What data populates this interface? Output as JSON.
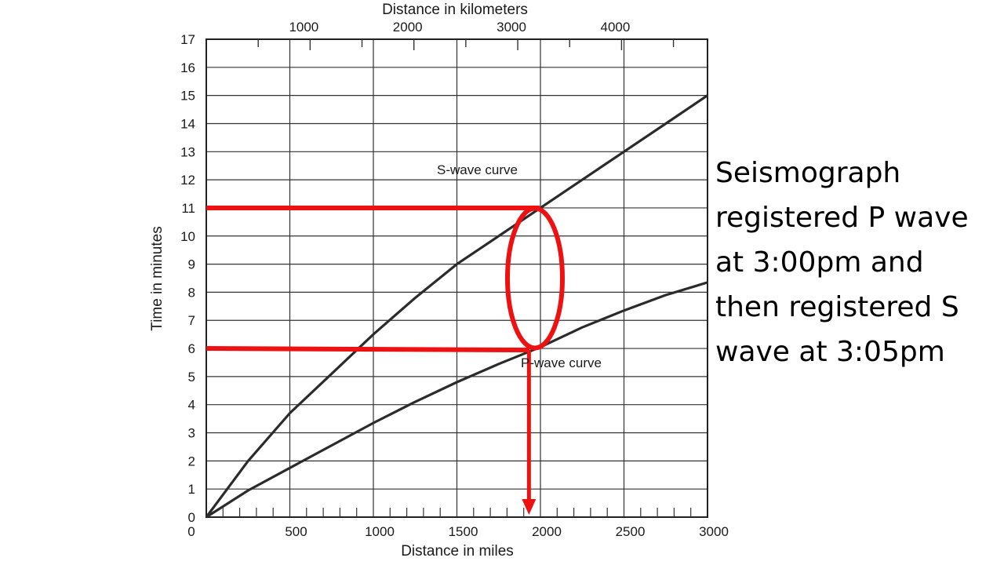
{
  "chart_data": {
    "type": "line",
    "x_top_label": "Distance in kilometers",
    "x_top_ticks": [
      1000,
      2000,
      3000,
      4000
    ],
    "xlabel": "Distance in miles",
    "x_ticks": [
      500,
      1000,
      1500,
      2000,
      2500,
      3000
    ],
    "x_origin_label": "0",
    "xlim": [
      0,
      3000
    ],
    "ylabel": "Time in minutes",
    "y_ticks": [
      0,
      1,
      2,
      3,
      4,
      5,
      6,
      7,
      8,
      9,
      10,
      11,
      12,
      13,
      14,
      15,
      16,
      17
    ],
    "ylim": [
      0,
      17
    ],
    "grid": true,
    "series": [
      {
        "name": "S-wave curve",
        "x": [
          0,
          250,
          500,
          750,
          1000,
          1250,
          1500,
          1750,
          2000,
          2250,
          2500,
          2750,
          3000
        ],
        "y": [
          0,
          2.0,
          3.7,
          5.1,
          6.5,
          7.8,
          9.0,
          10.0,
          11.0,
          12.0,
          13.0,
          14.0,
          15.0
        ]
      },
      {
        "name": "P-wave curve",
        "x": [
          0,
          250,
          500,
          750,
          1000,
          1250,
          1500,
          1750,
          2000,
          2250,
          2500,
          2750,
          3000
        ],
        "y": [
          0,
          0.95,
          1.75,
          2.55,
          3.35,
          4.1,
          4.8,
          5.45,
          6.05,
          6.75,
          7.35,
          7.9,
          8.35
        ]
      }
    ],
    "annotations": {
      "s_wave_time": 11,
      "p_wave_time": 6,
      "distance_miles": 1950,
      "color": "#ee1111"
    }
  },
  "note": {
    "lines": [
      "Seismograph",
      "registered P wave",
      "at 3:00pm and",
      "then registered S",
      "wave at 3:05pm"
    ]
  }
}
